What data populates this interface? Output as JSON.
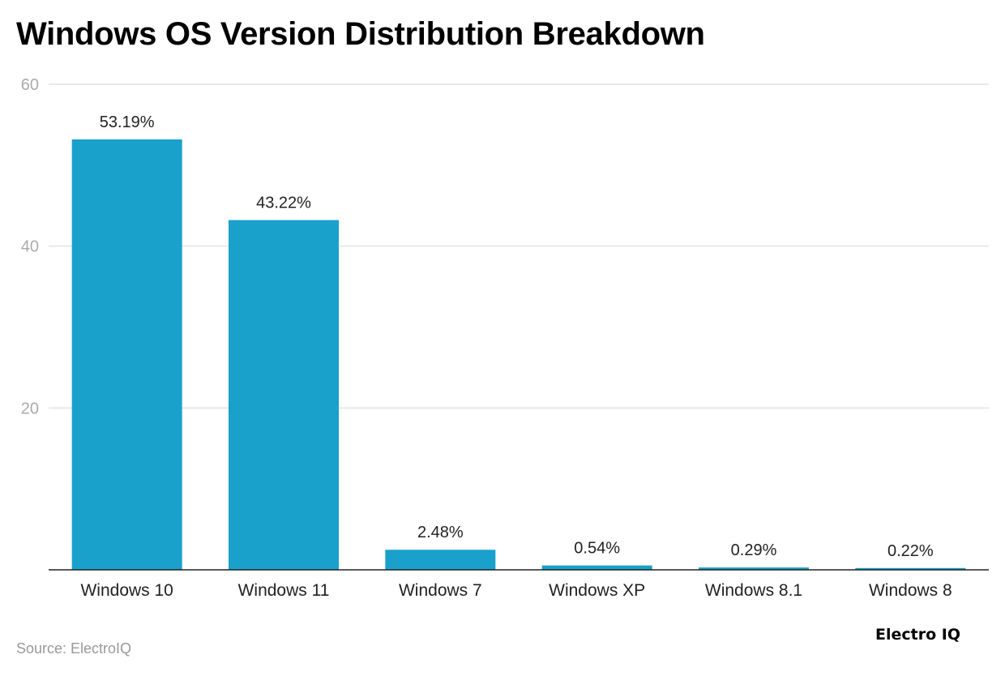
{
  "chart_data": {
    "type": "bar",
    "title": "Windows OS Version Distribution Breakdown",
    "categories": [
      "Windows 10",
      "Windows 11",
      "Windows 7",
      "Windows XP",
      "Windows 8.1",
      "Windows 8"
    ],
    "values": [
      53.19,
      43.22,
      2.48,
      0.54,
      0.29,
      0.22
    ],
    "data_labels": [
      "53.19%",
      "43.22%",
      "2.48%",
      "0.54%",
      "0.29%",
      "0.22%"
    ],
    "xlabel": "",
    "ylabel": "",
    "ylim": [
      0,
      60
    ],
    "yticks": [
      20,
      40,
      60
    ],
    "grid": true,
    "bar_color": "#19a1cc"
  },
  "source": "Source: ElectroIQ",
  "logo": "Electro IQ"
}
